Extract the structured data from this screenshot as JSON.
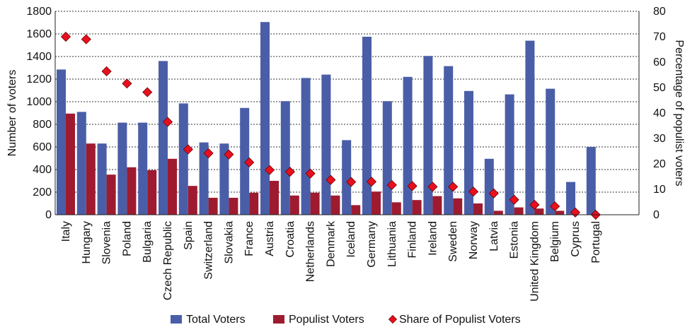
{
  "chart_data": {
    "type": "bar",
    "title": "",
    "categories": [
      "Italy",
      "Hungary",
      "Slovenia",
      "Poland",
      "Bulgaria",
      "Czech Republic",
      "Spain",
      "Switzerland",
      "Slovakia",
      "France",
      "Austria",
      "Croatia",
      "Netherlands",
      "Denmark",
      "Iceland",
      "Germany",
      "Lithuania",
      "Finland",
      "Ireland",
      "Sweden",
      "Norway",
      "Latvia",
      "Estonia",
      "United Kingdom",
      "Belgium",
      "Cyprus",
      "Portugal"
    ],
    "series": [
      {
        "name": "Total Voters",
        "axis": "left",
        "kind": "bar",
        "color": "#4a5ea8",
        "values": [
          1285,
          910,
          630,
          815,
          815,
          1360,
          985,
          640,
          630,
          945,
          1705,
          1005,
          1210,
          1240,
          660,
          1575,
          1005,
          1220,
          1405,
          1315,
          1095,
          495,
          1065,
          1540,
          1115,
          290,
          600
        ]
      },
      {
        "name": "Populist Voters",
        "axis": "left",
        "kind": "bar",
        "color": "#9e1b2f",
        "values": [
          895,
          630,
          355,
          420,
          395,
          495,
          255,
          150,
          150,
          195,
          300,
          170,
          195,
          170,
          85,
          205,
          110,
          130,
          165,
          145,
          100,
          35,
          65,
          55,
          35,
          0,
          0
        ]
      },
      {
        "name": "Share of Populist Voters",
        "axis": "right",
        "kind": "scatter",
        "marker": "diamond",
        "color": "#e8101e",
        "values": [
          70,
          69,
          56.4,
          51.6,
          48.2,
          36.5,
          25.7,
          24.2,
          23.7,
          20.6,
          17.6,
          16.9,
          16.2,
          13.7,
          12.9,
          13,
          11.7,
          11.3,
          11,
          11,
          9.1,
          8.4,
          5.9,
          3.9,
          3.3,
          0.9,
          0
        ]
      }
    ],
    "ylabel": "Number of voters",
    "y2label": "Percentage of populist voters",
    "ylim": [
      0,
      1800
    ],
    "y2lim": [
      0,
      80
    ],
    "yticks": [
      "0",
      "200",
      "400",
      "600",
      "800",
      "1000",
      "1200",
      "1400",
      "1600",
      "1800"
    ],
    "y2ticks": [
      "0",
      "10",
      "20",
      "30",
      "40",
      "50",
      "60",
      "70",
      "80"
    ],
    "grid": "horizontal dotted",
    "legend_position": "bottom"
  }
}
